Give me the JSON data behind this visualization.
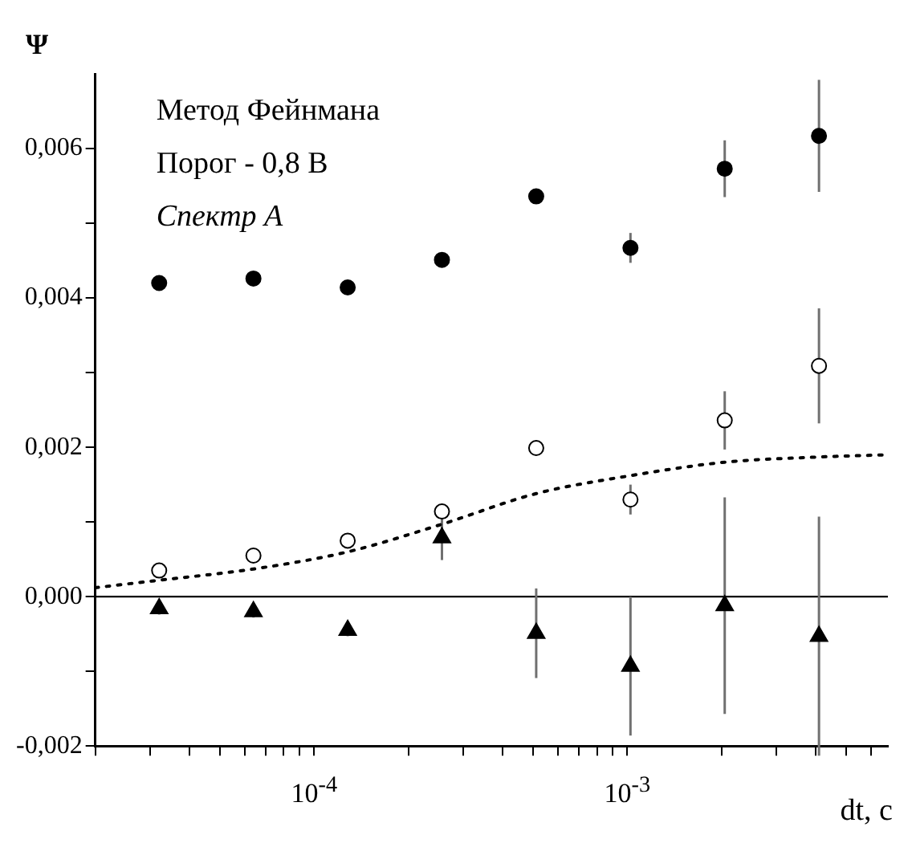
{
  "chart_data": {
    "type": "scatter",
    "xlabel": "dt, c",
    "ylabel": "Ψ",
    "annotations": [
      "Метод Фейнмана",
      "Порог - 0,8 В",
      "Спектр А"
    ],
    "log": "x",
    "xlim": [
      2e-05,
      0.0068
    ],
    "ylim": [
      -0.002,
      0.007
    ],
    "xticks": [
      {
        "value": 2e-05,
        "label": null
      },
      {
        "value": 3e-05,
        "label": null
      },
      {
        "value": 4e-05,
        "label": null
      },
      {
        "value": 5e-05,
        "label": null
      },
      {
        "value": 6e-05,
        "label": null
      },
      {
        "value": 7e-05,
        "label": null
      },
      {
        "value": 8e-05,
        "label": null
      },
      {
        "value": 9e-05,
        "label": null
      },
      {
        "value": 0.0001,
        "label": "10$^{-4}$"
      },
      {
        "value": 0.0002,
        "label": null
      },
      {
        "value": 0.0003,
        "label": null
      },
      {
        "value": 0.0004,
        "label": null
      },
      {
        "value": 0.0005,
        "label": null
      },
      {
        "value": 0.0006,
        "label": null
      },
      {
        "value": 0.0007,
        "label": null
      },
      {
        "value": 0.0008,
        "label": null
      },
      {
        "value": 0.0009,
        "label": null
      },
      {
        "value": 0.001,
        "label": "10$^{-3}$"
      },
      {
        "value": 0.002,
        "label": null
      },
      {
        "value": 0.003,
        "label": null
      },
      {
        "value": 0.004,
        "label": null
      },
      {
        "value": 0.005,
        "label": null
      },
      {
        "value": 0.006,
        "label": null
      }
    ],
    "yticks": [
      {
        "value": -0.002,
        "label": "-0,002"
      },
      {
        "value": -0.001,
        "label": null
      },
      {
        "value": 0,
        "label": "0,000"
      },
      {
        "value": 0.001,
        "label": null
      },
      {
        "value": 0.002,
        "label": "0,002"
      },
      {
        "value": 0.003,
        "label": null
      },
      {
        "value": 0.004,
        "label": "0,004"
      },
      {
        "value": 0.005,
        "label": null
      },
      {
        "value": 0.006,
        "label": "0,006"
      }
    ],
    "x": [
      3.2e-05,
      6.4e-05,
      0.000128,
      0.000256,
      0.000512,
      0.001024,
      0.002048,
      0.004096
    ],
    "ref_lines": [
      {
        "axis": "y",
        "value": 0,
        "color": "#000000"
      }
    ],
    "grid": false,
    "legend": false,
    "series": [
      {
        "color": "#000000",
        "marker": "circle",
        "values": [
          0.0042,
          0.00426,
          0.00414,
          0.00451,
          0.00536,
          0.00467,
          0.00573,
          0.00617
        ],
        "errors": [
          null,
          null,
          null,
          null,
          null,
          0.0002,
          0.00038,
          0.00075
        ]
      },
      {
        "color": "#ffffff",
        "marker": "circle",
        "values": [
          0.00035,
          0.00055,
          0.00075,
          0.00114,
          0.00199,
          0.0013,
          0.00236,
          0.00309
        ],
        "errors": [
          6e-05,
          6e-05,
          6e-05,
          8e-05,
          null,
          0.0002,
          0.00039,
          0.00077
        ]
      },
      {
        "color": "#000000",
        "marker": "triangle",
        "values": [
          -0.00016,
          -0.0002,
          -0.00045,
          0.00079,
          -0.00049,
          -0.00093,
          -0.00012,
          -0.00053
        ],
        "errors": [
          8e-05,
          8e-05,
          8e-05,
          0.0003,
          0.0006,
          0.00093,
          0.00145,
          0.0016
        ]
      },
      {
        "type": "line",
        "color": "#000000",
        "marker": "none",
        "line_style": "dotted",
        "x": [
          2e-05,
          3.2e-05,
          6.4e-05,
          0.000128,
          0.000256,
          0.000512,
          0.001024,
          0.002048,
          0.004096,
          0.0068
        ],
        "values": [
          0.00012,
          0.00022,
          0.00037,
          0.0006,
          0.00097,
          0.00138,
          0.00162,
          0.0018,
          0.00187,
          0.0019
        ]
      }
    ]
  }
}
